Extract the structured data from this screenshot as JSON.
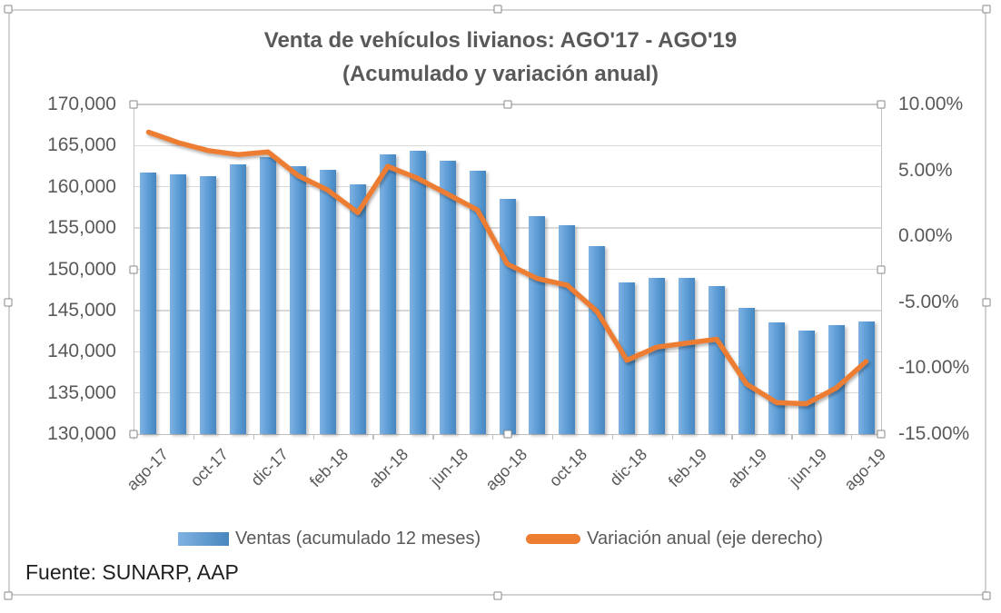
{
  "title": {
    "line1": "Venta de vehículos livianos: AGO'17 - AGO'19",
    "line2": "(Acumulado y variación anual)"
  },
  "legend": {
    "items": [
      {
        "label": "Ventas (acumulado 12 meses)",
        "marker": "bar",
        "color": "#5B9BD5"
      },
      {
        "label": "Variación anual (eje derecho)",
        "marker": "line",
        "color": "#ED7D31"
      }
    ]
  },
  "footer": {
    "source": "Fuente: SUNARP, AAP"
  },
  "axes": {
    "left": {
      "tick_labels": [
        "170,000",
        "165,000",
        "160,000",
        "155,000",
        "150,000",
        "145,000",
        "140,000",
        "135,000",
        "130,000"
      ]
    },
    "right": {
      "tick_labels": [
        "10.00%",
        "5.00%",
        "0.00%",
        "-5.00%",
        "-10.00%",
        "-15.00%"
      ]
    },
    "x": {
      "tick_labels": [
        "ago-17",
        "oct-17",
        "dic-17",
        "feb-18",
        "abr-18",
        "jun-18",
        "ago-18",
        "oct-18",
        "dic-18",
        "feb-19",
        "abr-19",
        "jun-19",
        "ago-19"
      ]
    }
  },
  "chart_data": {
    "type": "bar+line",
    "title": "Venta de vehículos livianos: AGO'17 - AGO'19 (Acumulado y variación anual)",
    "categories": [
      "ago-17",
      "sep-17",
      "oct-17",
      "nov-17",
      "dic-17",
      "ene-18",
      "feb-18",
      "mar-18",
      "abr-18",
      "may-18",
      "jun-18",
      "jul-18",
      "ago-18",
      "sep-18",
      "oct-18",
      "nov-18",
      "dic-18",
      "ene-19",
      "feb-19",
      "mar-19",
      "abr-19",
      "may-19",
      "jun-19",
      "jul-19",
      "ago-19"
    ],
    "series": [
      {
        "name": "Ventas (acumulado 12 meses)",
        "type": "bar",
        "axis": "left",
        "color": "#5B9BD5",
        "values": [
          161750,
          161500,
          161300,
          162700,
          163650,
          162500,
          162050,
          160350,
          163900,
          164400,
          163200,
          162000,
          158550,
          156450,
          155350,
          152800,
          148400,
          148900,
          148900,
          148000,
          145300,
          143500,
          142600,
          143200,
          143700
        ]
      },
      {
        "name": "Variación anual (eje derecho)",
        "type": "line",
        "axis": "right",
        "color": "#ED7D31",
        "values": [
          7.9,
          7.1,
          6.5,
          6.2,
          6.4,
          4.6,
          3.5,
          1.8,
          5.3,
          4.4,
          3.2,
          2.0,
          -2.1,
          -3.2,
          -3.7,
          -5.7,
          -9.4,
          -8.4,
          -8.1,
          -7.8,
          -11.2,
          -12.6,
          -12.7,
          -11.5,
          -9.5
        ]
      }
    ],
    "left_axis_range": {
      "min": 130000,
      "max": 170000,
      "step": 5000
    },
    "right_axis_range": {
      "min": -15,
      "max": 10,
      "step": 5
    },
    "x_label_interval": 2,
    "grid": true,
    "legend_position": "bottom"
  },
  "colors": {
    "bar": "#5B9BD5",
    "line": "#ED7D31",
    "grid": "#D9D9D9",
    "axis_line": "#BFBFBF",
    "text": "#595959",
    "footer_text": "#1F1F1F",
    "handle_border": "#8C8C8C"
  }
}
